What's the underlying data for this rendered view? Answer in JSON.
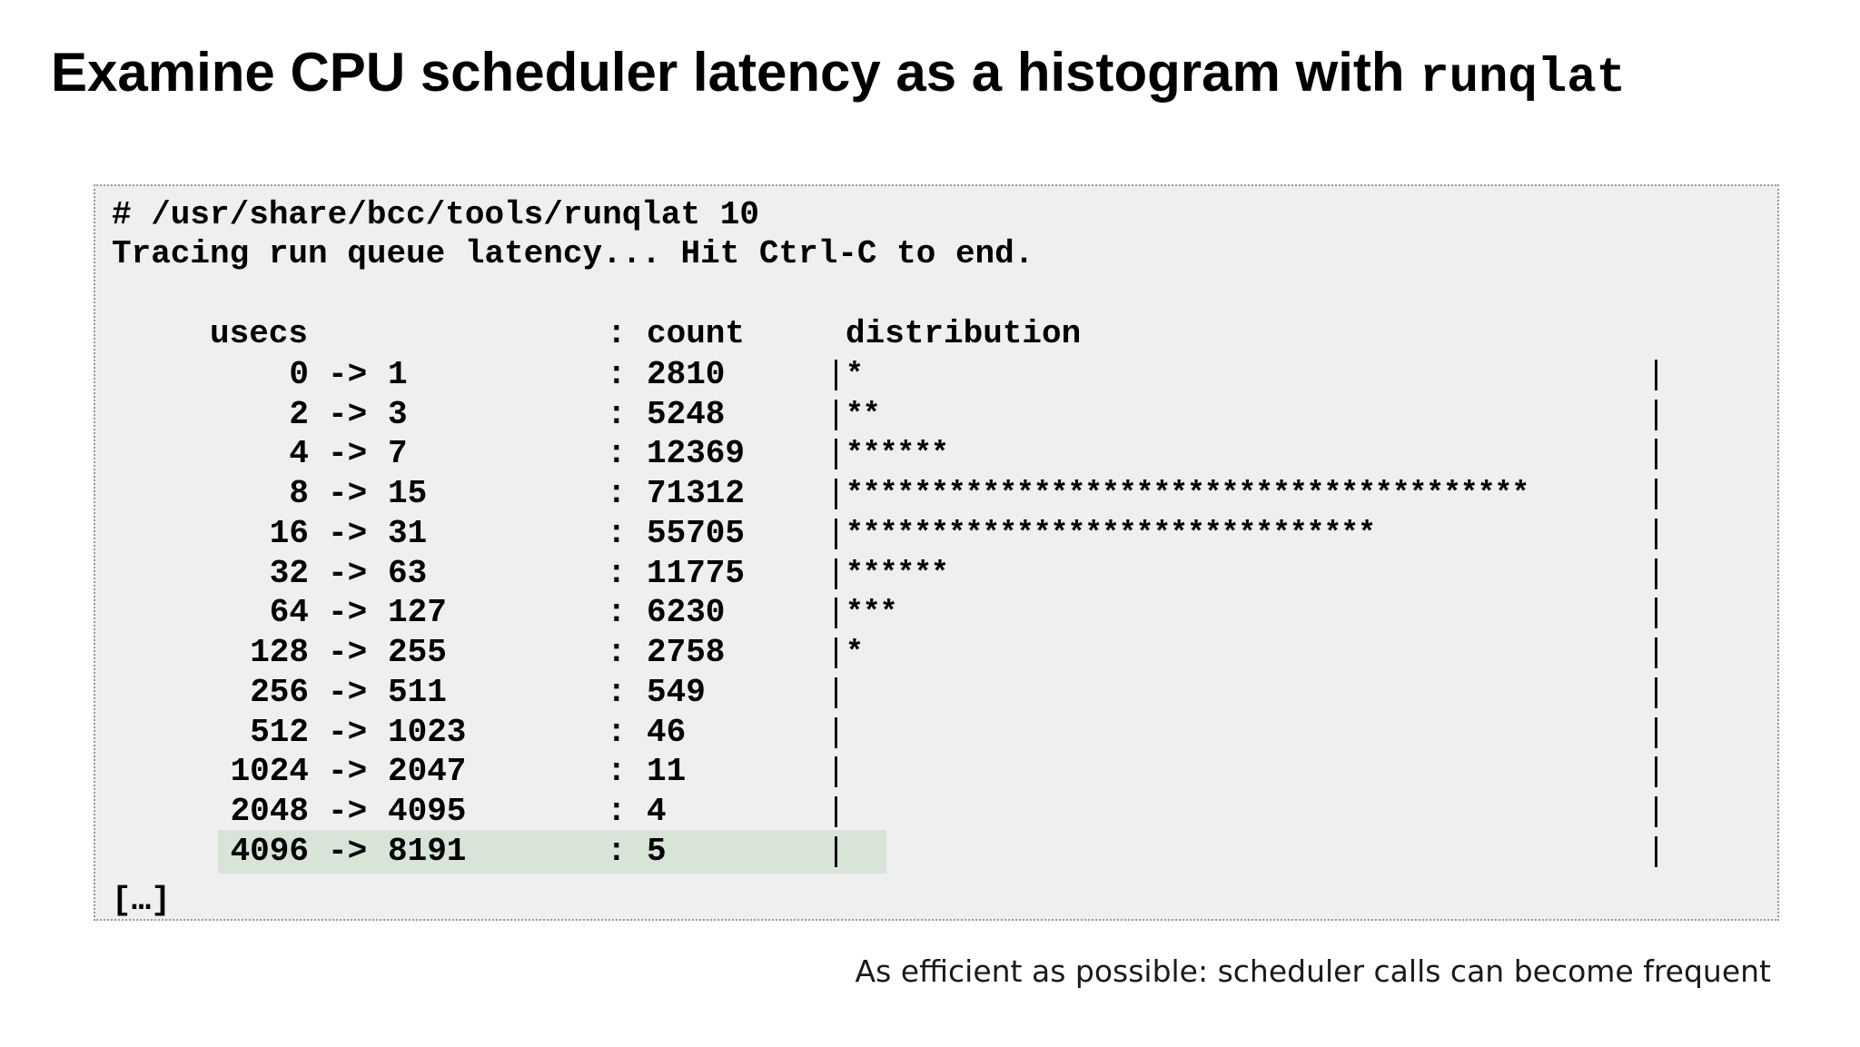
{
  "title": {
    "text": "Examine CPU scheduler latency as a histogram with",
    "code": "runqlat"
  },
  "terminal": {
    "command": "# /usr/share/bcc/tools/runqlat 10",
    "status": "Tracing run queue latency... Hit Ctrl-C to end.",
    "headers": {
      "unit": "usecs",
      "separator": ":",
      "count": "count",
      "distribution": "distribution"
    },
    "rows": [
      {
        "low": "0",
        "high": "1",
        "count": "2810",
        "stars": "*"
      },
      {
        "low": "2",
        "high": "3",
        "count": "5248",
        "stars": "**"
      },
      {
        "low": "4",
        "high": "7",
        "count": "12369",
        "stars": "******"
      },
      {
        "low": "8",
        "high": "15",
        "count": "71312",
        "stars": "****************************************"
      },
      {
        "low": "16",
        "high": "31",
        "count": "55705",
        "stars": "*******************************"
      },
      {
        "low": "32",
        "high": "63",
        "count": "11775",
        "stars": "******"
      },
      {
        "low": "64",
        "high": "127",
        "count": "6230",
        "stars": "***"
      },
      {
        "low": "128",
        "high": "255",
        "count": "2758",
        "stars": "*"
      },
      {
        "low": "256",
        "high": "511",
        "count": "549",
        "stars": ""
      },
      {
        "low": "512",
        "high": "1023",
        "count": "46",
        "stars": ""
      },
      {
        "low": "1024",
        "high": "2047",
        "count": "11",
        "stars": ""
      },
      {
        "low": "2048",
        "high": "4095",
        "count": "4",
        "stars": ""
      },
      {
        "low": "4096",
        "high": "8191",
        "count": "5",
        "stars": ""
      }
    ],
    "highlighted_row_index": 12,
    "arrow": "->",
    "truncation": "[…]"
  },
  "footnote": "As efficient as possible: scheduler calls can become frequent",
  "colors": {
    "terminal_background": "#efefef",
    "highlight": "#d8e4d8"
  }
}
